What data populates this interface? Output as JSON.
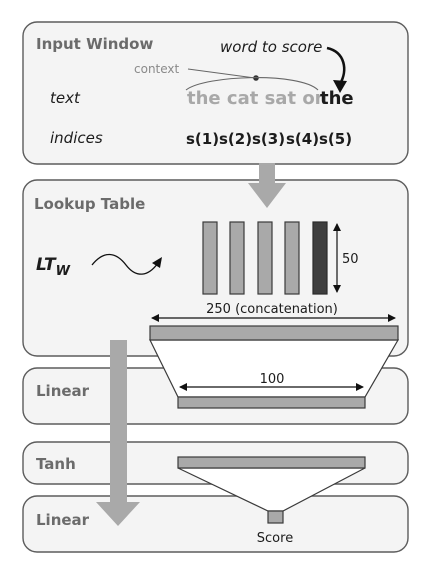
{
  "input_window": {
    "title": "Input Window",
    "word_to_score_label": "word to score",
    "context_label": "context",
    "text_label": "text",
    "indices_label": "indices",
    "context_words": "the cat sat on",
    "target_word": "the",
    "indices": [
      "s(1)",
      "s(2)",
      "s(3)",
      "s(4)",
      "s(5)"
    ]
  },
  "lookup_table": {
    "title": "Lookup Table",
    "lt_label": "LT",
    "lt_subscript": "W",
    "embedding_dim_label": "50",
    "concatenation_label": "250 (concatenation)"
  },
  "linear_1": {
    "title": "Linear",
    "hidden_dim_label": "100"
  },
  "tanh": {
    "title": "Tanh"
  },
  "linear_2": {
    "title": "Linear",
    "output_label": "Score"
  }
}
